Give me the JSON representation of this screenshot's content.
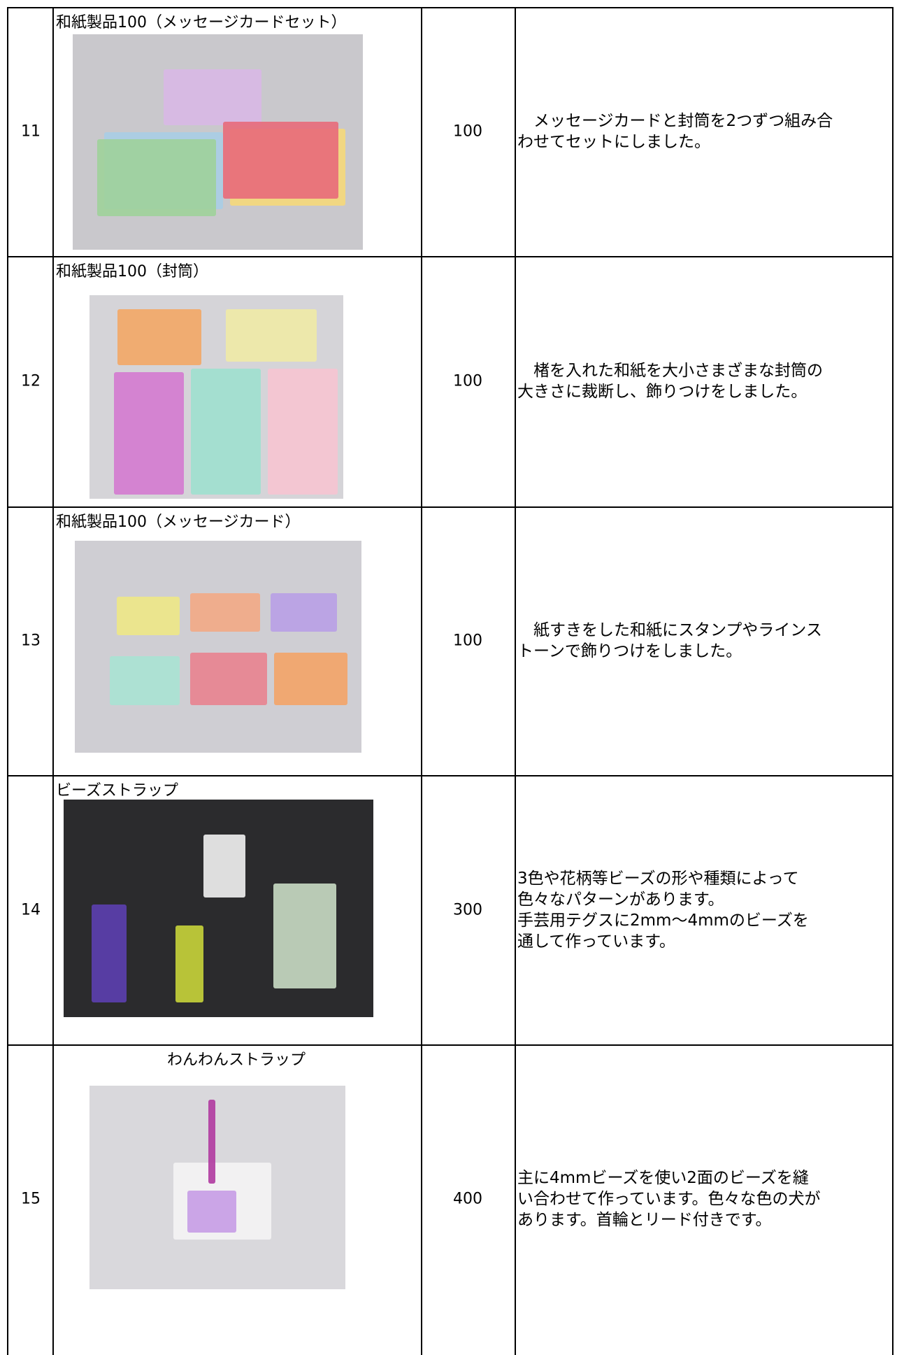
{
  "table": {
    "rows": [
      {
        "number": "11",
        "name": "和紙製品100（メッセージカードセット）",
        "price": "100",
        "description": [
          "　メッセージカードと封筒を2つずつ組み合",
          "わせてセットにしました。"
        ]
      },
      {
        "number": "12",
        "name": "和紙製品100（封筒）",
        "price": "100",
        "description": [
          "　楮を入れた和紙を大小さまざまな封筒の",
          "大きさに裁断し、飾りつけをしました。"
        ]
      },
      {
        "number": "13",
        "name": "和紙製品100（メッセージカード）",
        "price": "100",
        "description": [
          "　紙すきをした和紙にスタンプやラインス",
          "トーンで飾りつけをしました。"
        ]
      },
      {
        "number": "14",
        "name": "ビーズストラップ",
        "price": "300",
        "description": [
          "3色や花柄等ビーズの形や種類によって",
          "色々なパターンがあります。",
          "手芸用テグスに2mm～4mmのビーズを",
          "通して作っています。"
        ]
      },
      {
        "number": "15",
        "name": "わんわんストラップ",
        "price": "400",
        "description": [
          "主に4mmビーズを使い2面のビーズを縫",
          "い合わせて作っています。色々な色の犬が",
          "あります。首輪とリード付きです。"
        ]
      }
    ]
  }
}
